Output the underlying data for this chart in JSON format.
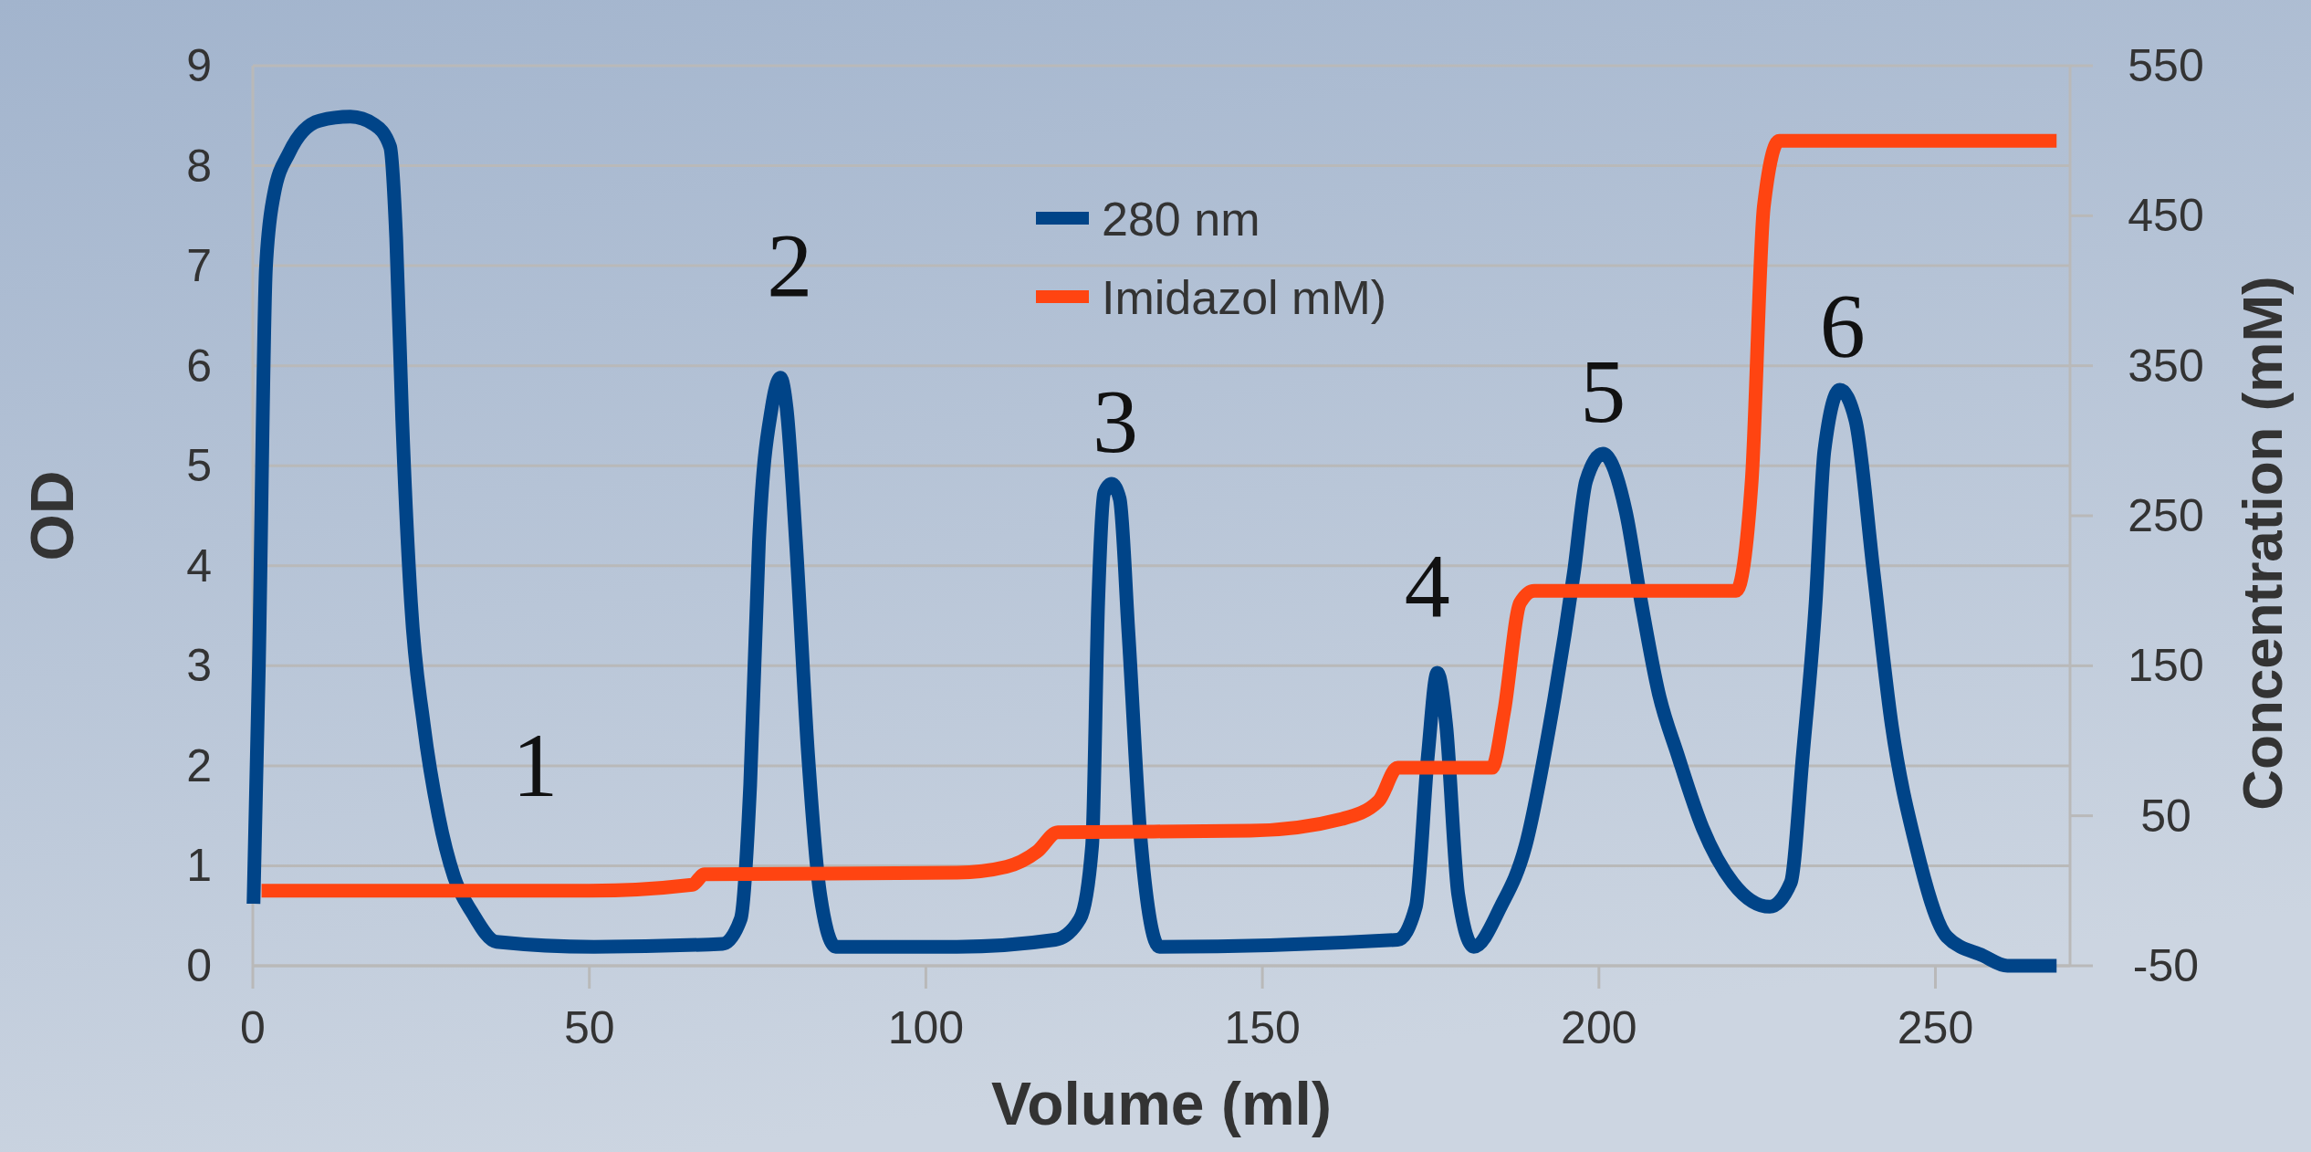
{
  "chart_data": {
    "type": "line",
    "xlabel": "Volume (ml)",
    "ylabel": "OD",
    "y2label": "Concentration (mM)",
    "xlim": [
      0,
      270
    ],
    "xticks": [
      0,
      50,
      100,
      150,
      200,
      250
    ],
    "ylim": [
      0,
      9
    ],
    "yticks": [
      0,
      1,
      2,
      3,
      4,
      5,
      6,
      7,
      8,
      9
    ],
    "y2lim": [
      -50,
      550
    ],
    "y2ticks": [
      -50,
      50,
      150,
      250,
      350,
      450,
      550
    ],
    "grid": "y",
    "legend": "top",
    "line_style": "solid",
    "series": [
      {
        "name": "280 nm",
        "color": "#004488",
        "x": [
          0.1,
          0.9,
          1.95,
          3.1,
          5.4,
          9.9,
          14.5,
          18.1,
          20.4,
          21.3,
          22.2,
          23.5,
          25.4,
          27.6,
          29.9,
          32.6,
          36.2,
          50.7,
          69.8,
          72.5,
          73.9,
          75.2,
          77.1,
          78.4,
          79.3,
          80.7,
          82.5,
          84.3,
          86.6,
          104.6,
          119.2,
          122.9,
          124.7,
          125.6,
          126.5,
          127.6,
          128.8,
          130.1,
          132,
          134.7,
          170.1,
          172.8,
          174.6,
          176,
          177.3,
          179.1,
          181.4,
          185.4,
          189.1,
          192.7,
          196.3,
          198.1,
          200.6,
          204,
          206.3,
          208.9,
          211.7,
          215.4,
          219.9,
          225.4,
          228.5,
          230.3,
          232.2,
          233.5,
          235.8,
          238.1,
          240.8,
          243.5,
          247.1,
          251.7,
          257.1,
          260.7,
          268
        ],
        "values": [
          0.62,
          3.0,
          6.98,
          7.7,
          8.13,
          8.45,
          8.49,
          8.41,
          8.19,
          7.28,
          5.46,
          3.63,
          2.41,
          1.5,
          0.89,
          0.53,
          0.24,
          0.19,
          0.22,
          0.47,
          1.81,
          4.24,
          5.58,
          5.88,
          5.58,
          4.24,
          2.11,
          0.71,
          0.19,
          0.19,
          0.26,
          0.47,
          1.2,
          3.63,
          4.73,
          4.82,
          4.67,
          3.33,
          1.2,
          0.19,
          0.26,
          0.59,
          2.11,
          2.93,
          2.41,
          0.71,
          0.19,
          0.59,
          1.2,
          2.41,
          3.94,
          4.85,
          5.12,
          4.54,
          3.63,
          2.72,
          2.11,
          1.38,
          0.83,
          0.59,
          0.83,
          2.11,
          3.63,
          5.15,
          5.76,
          5.46,
          3.94,
          2.41,
          1.2,
          0.29,
          0.1,
          0,
          0
        ]
      },
      {
        "name": "Imidazol mM)",
        "color": "#ff4411",
        "axis": "y2",
        "x": [
          1.3,
          50,
          65.3,
          67.1,
          104.6,
          112,
          116.5,
          119.6,
          148.2,
          161.9,
          167.3,
          170.1,
          184.1,
          185.9,
          188.3,
          190.4,
          220.4,
          222.7,
          224.5,
          226.8,
          268
        ],
        "values": [
          0,
          0,
          4,
          11,
          12,
          16,
          26,
          39,
          40,
          48,
          60,
          82,
          82,
          119,
          192,
          200,
          200,
          273,
          456,
          500,
          500
        ]
      }
    ],
    "annotations": [
      {
        "text": "1",
        "x": 25.4,
        "y": 2.41
      },
      {
        "text": "2",
        "x": 78.4,
        "y": 5.88
      },
      {
        "text": "3",
        "x": 127.6,
        "y": 4.82
      },
      {
        "text": "4",
        "x": 176,
        "y": 2.93
      },
      {
        "text": "5",
        "x": 200.6,
        "y": 5.12
      },
      {
        "text": "6",
        "x": 235.8,
        "y": 5.76
      }
    ]
  }
}
